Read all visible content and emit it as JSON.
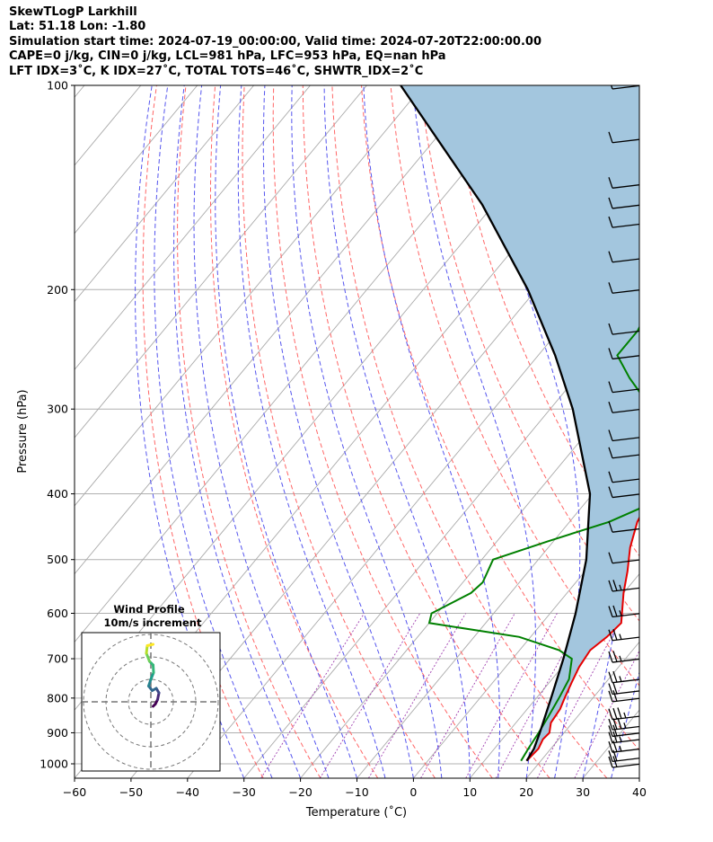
{
  "header": {
    "line1": "SkewTLogP Larkhill",
    "line2": "Lat: 51.18   Lon: -1.80",
    "line3": "Simulation start time: 2024-07-19_00:00:00, Valid time: 2024-07-20T22:00:00.00",
    "line4": "CAPE=0 j/kg, CIN=0 j/kg, LCL=981 hPa, LFC=953 hPa, EQ=nan hPa",
    "line5": "LFT IDX=3˚C, K IDX=27˚C, TOTAL TOTS=46˚C, SHWTR_IDX=2˚C"
  },
  "hodograph": {
    "title": "Wind Profile",
    "subtitle": "10m/s increment"
  },
  "chart_data": {
    "type": "skew-t",
    "title": "SkewTLogP Larkhill",
    "xlabel": "Temperature (˚C)",
    "ylabel": "Pressure (hPa)",
    "xlim": [
      -60,
      40
    ],
    "ylim": [
      1050,
      100
    ],
    "y_scale": "log",
    "x_ticks": [
      "−60",
      "−50",
      "−40",
      "−30",
      "−20",
      "−10",
      "0",
      "10",
      "20",
      "30",
      "40"
    ],
    "y_ticks": [
      "100",
      "200",
      "300",
      "400",
      "500",
      "600",
      "700",
      "800",
      "900",
      "1000"
    ],
    "grid": true,
    "colors": {
      "temperature": "#e60000",
      "dewpoint": "#008000",
      "parcel": "#000000",
      "area": "#a3c6de",
      "dry_adiabat": "#ff6666",
      "moist_adiabat": "#5555ee",
      "mixing_ratio": "#a040b0",
      "isotherm": "#aaaaaa"
    },
    "series": [
      {
        "name": "temperature",
        "pressure": [
          990,
          950,
          920,
          900,
          870,
          830,
          800,
          760,
          720,
          680,
          650,
          620,
          560,
          520,
          480,
          440,
          400,
          360,
          330,
          310,
          290,
          270,
          250,
          230,
          210,
          190,
          170,
          150,
          130,
          115,
          100
        ],
        "temp": [
          17.5,
          17.8,
          17.2,
          17.4,
          16.2,
          15.8,
          15.0,
          14.0,
          13.0,
          12.5,
          13.5,
          14.0,
          10.0,
          7.5,
          4.5,
          2.0,
          0.5,
          -1.8,
          -3.5,
          -4.5,
          -5.0,
          -4.2,
          -2.0,
          0.5,
          5.5,
          10.0,
          15.0,
          20.5,
          25.0,
          28.0,
          32.0
        ]
      },
      {
        "name": "dewpoint",
        "pressure": [
          990,
          950,
          900,
          850,
          800,
          750,
          700,
          680,
          650,
          620,
          600,
          560,
          540,
          500,
          470,
          440,
          420,
          400,
          380,
          350,
          320,
          300,
          270,
          250,
          230,
          210,
          200,
          190,
          170,
          150,
          130,
          100
        ],
        "temp": [
          16.5,
          16.0,
          15.5,
          14.8,
          14.0,
          13.0,
          10.5,
          7.0,
          -2.0,
          -20.0,
          -21.0,
          -17.0,
          -16.5,
          -18.0,
          -11.0,
          -3.0,
          0.5,
          1.0,
          -1.0,
          -4.0,
          -8.5,
          -12.0,
          -20.5,
          -26.0,
          -26.0,
          -27.5,
          -28.0,
          -30.0,
          -20.0,
          -9.0,
          2.0,
          20.0
        ]
      },
      {
        "name": "parcel",
        "pressure": [
          990,
          950,
          900,
          850,
          800,
          700,
          600,
          500,
          400,
          300,
          250,
          200,
          150,
          100
        ],
        "temp": [
          17.5,
          17.0,
          15.7,
          14.2,
          12.6,
          9.0,
          4.5,
          -1.5,
          -10.5,
          -26.0,
          -37.0,
          -51.5,
          -72.0,
          -104.0
        ]
      }
    ],
    "wind_barbs": {
      "pressure": [
        1000,
        980,
        950,
        920,
        900,
        880,
        850,
        800,
        780,
        750,
        700,
        650,
        600,
        550,
        500,
        450,
        400,
        380,
        350,
        330,
        300,
        280,
        250,
        230,
        200,
        180,
        160,
        150,
        140,
        120,
        100
      ],
      "speed_kt": [
        20,
        20,
        15,
        15,
        20,
        25,
        25,
        20,
        20,
        15,
        15,
        15,
        15,
        15,
        10,
        10,
        10,
        10,
        10,
        10,
        10,
        10,
        10,
        10,
        10,
        10,
        10,
        10,
        10,
        10,
        10
      ]
    },
    "hodograph_series": {
      "u": [
        0.5,
        1.0,
        1.5,
        1.8,
        1.2,
        0.3,
        -0.5,
        0.0,
        0.6,
        0.5,
        -0.3,
        -1.0,
        -0.8,
        0.5
      ],
      "v": [
        -1.0,
        -0.5,
        0.5,
        2.0,
        3.0,
        2.5,
        3.5,
        5.0,
        6.5,
        8.2,
        9.0,
        10.8,
        12.5,
        12.8
      ]
    }
  }
}
